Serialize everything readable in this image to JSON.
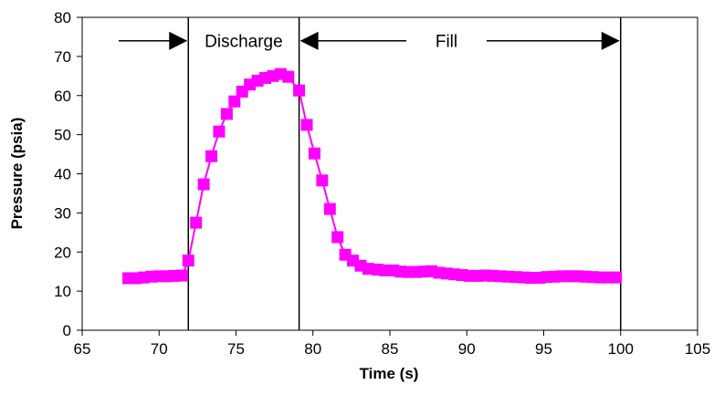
{
  "chart_data": {
    "type": "scatter",
    "title": "",
    "xlabel": "Time (s)",
    "ylabel": "Pressure (psia)",
    "xlim": [
      65,
      105
    ],
    "ylim": [
      0,
      80
    ],
    "x_ticks": [
      65,
      70,
      75,
      80,
      85,
      90,
      95,
      100,
      105
    ],
    "y_ticks": [
      0,
      10,
      20,
      30,
      40,
      50,
      60,
      70,
      80
    ],
    "grid": false,
    "legend": "none",
    "series": [
      {
        "color": "#ff00ff",
        "marker": "square",
        "line": true,
        "x": [
          68.0,
          68.5,
          69.0,
          69.5,
          70.0,
          70.5,
          71.0,
          71.5,
          71.9,
          72.4,
          72.9,
          73.4,
          73.9,
          74.4,
          74.9,
          75.4,
          75.9,
          76.4,
          76.9,
          77.4,
          77.9,
          78.4,
          79.1,
          79.6,
          80.1,
          80.6,
          81.1,
          81.6,
          82.1,
          82.6,
          83.1,
          83.6,
          84.2,
          84.7,
          85.2,
          85.7,
          86.2,
          86.7,
          87.2,
          87.7,
          88.2,
          88.7,
          89.2,
          89.7,
          90.2,
          90.7,
          91.2,
          91.7,
          92.2,
          92.7,
          93.2,
          93.7,
          94.2,
          94.7,
          95.2,
          95.7,
          96.2,
          96.7,
          97.2,
          97.7,
          98.2,
          98.7,
          99.2,
          99.7
        ],
        "y": [
          13.3,
          13.3,
          13.5,
          13.7,
          13.8,
          13.8,
          13.9,
          14.0,
          17.8,
          27.5,
          37.3,
          44.5,
          50.8,
          55.3,
          58.5,
          61.0,
          62.8,
          63.8,
          64.5,
          65.0,
          65.5,
          64.8,
          61.3,
          52.5,
          45.2,
          38.3,
          31.0,
          23.8,
          19.3,
          17.8,
          16.5,
          15.7,
          15.5,
          15.3,
          15.3,
          15.0,
          14.9,
          14.9,
          15.0,
          15.1,
          14.7,
          14.5,
          14.3,
          14.1,
          13.9,
          13.9,
          14.0,
          13.9,
          13.8,
          13.7,
          13.6,
          13.5,
          13.4,
          13.4,
          13.6,
          13.7,
          13.8,
          13.8,
          13.8,
          13.7,
          13.6,
          13.5,
          13.5,
          13.5
        ]
      }
    ],
    "vertical_lines": [
      71.9,
      79.1,
      100
    ],
    "annotations": [
      {
        "text": "Discharge",
        "x_from": 71.9,
        "x_to": 79.1
      },
      {
        "text": "Fill",
        "x_from": 79.1,
        "x_to": 100
      }
    ]
  }
}
